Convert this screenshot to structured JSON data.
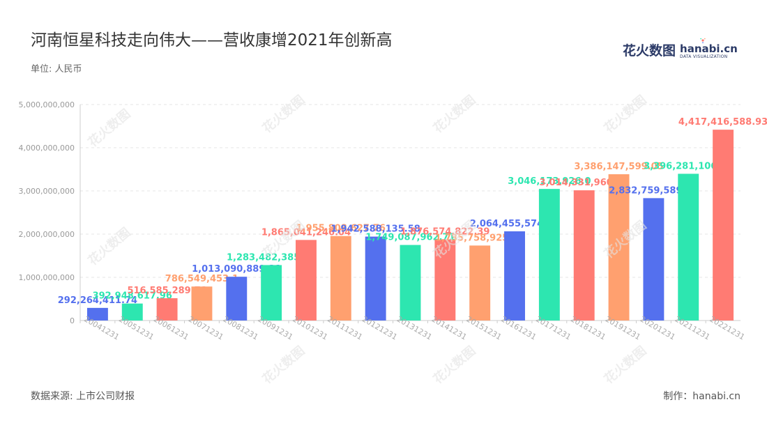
{
  "header": {
    "title": "河南恒星科技走向伟大——营收康增2021年创新高",
    "unit": "单位: 人民币"
  },
  "logo": {
    "cn": "花火数图",
    "en": "hanabi.cn",
    "sub": "DATA VISUALIZATION"
  },
  "footer": {
    "source": "数据来源: 上市公司财报",
    "maker": "制作：hanabi.cn"
  },
  "colors": {
    "blue": "#5470ee",
    "green": "#2de6b0",
    "red": "#ff7b73",
    "orange": "#ffa06f",
    "axis_text": "#999999",
    "grid": "#e6e6e6"
  },
  "chart_data": {
    "type": "bar",
    "ylim": [
      0,
      5000000000
    ],
    "yticks": [
      "0",
      "1,000,000,000",
      "2,000,000,000",
      "3,000,000,000",
      "4,000,000,000",
      "5,000,000,000"
    ],
    "grid": true,
    "categories": [
      "20041231",
      "20051231",
      "20061231",
      "20071231",
      "20081231",
      "20091231",
      "20101231",
      "20111231",
      "20121231",
      "20131231",
      "20141231",
      "20151231",
      "20161231",
      "20171231",
      "20181231",
      "20191231",
      "20201231",
      "20211231",
      "20221231"
    ],
    "values": [
      292264411.74,
      392948617.96,
      516585289.78,
      786549453.1,
      1013090889.31,
      1283482385.16,
      1865041246.04,
      1955808627.76,
      1942588135.58,
      1749087962.71,
      1876574822.39,
      1735758925.07,
      2064455574.55,
      3046173926.0,
      3014331960.05,
      3386147599.05,
      2832759589.33,
      3396281106.63,
      4417416588.93
    ],
    "labels": [
      "292,264,411.74",
      "392,948,617.96",
      "516,585,289.78",
      "786,549,453.1",
      "1,013,090,889.31",
      "1,283,482,385.16",
      "1,865,041,246.04",
      "1,955,808,627.76",
      "1,942,588,135.58",
      "1,749,087,962.71",
      "1,876,574,822.39",
      "1,735,758,925.07",
      "2,064,455,574.55",
      "3,046,173,926.0",
      "3,014,331,960.05",
      "3,386,147,599.05",
      "2,832,759,589.33",
      "3,396,281,106.63",
      "4,417,416,588.93"
    ],
    "bar_colors": [
      "blue",
      "green",
      "red",
      "orange",
      "blue",
      "green",
      "red",
      "orange",
      "blue",
      "green",
      "red",
      "orange",
      "blue",
      "green",
      "red",
      "orange",
      "blue",
      "green",
      "red"
    ]
  }
}
